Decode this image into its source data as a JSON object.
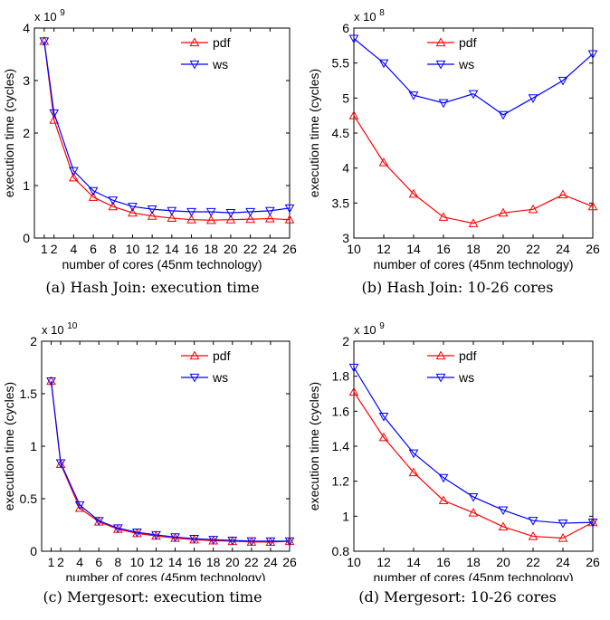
{
  "chart_data": [
    {
      "type": "line",
      "caption": "(a) Hash Join: execution time",
      "xlabel": "number of cores (45nm technology)",
      "ylabel": "execution time (cycles)",
      "exponent": "x 10",
      "exponent_power": "9",
      "x": [
        1,
        2,
        4,
        6,
        8,
        10,
        12,
        14,
        16,
        18,
        20,
        22,
        24,
        26
      ],
      "xticks": [
        1,
        2,
        4,
        6,
        8,
        10,
        12,
        14,
        16,
        18,
        20,
        22,
        24,
        26
      ],
      "xtick_labels": [
        "1",
        "2",
        "4",
        "6",
        "8",
        "10",
        "12",
        "14",
        "16",
        "18",
        "20",
        "22",
        "24",
        "26"
      ],
      "xlim": [
        0,
        26
      ],
      "yticks": [
        0,
        1,
        2,
        3,
        4
      ],
      "ytick_labels": [
        "0",
        "1",
        "2",
        "3",
        "4"
      ],
      "ylim": [
        0,
        4
      ],
      "legend_position": "top-right",
      "series": [
        {
          "name": "pdf",
          "color": "#ff0000",
          "marker": "triangle-up",
          "values": [
            3.75,
            2.25,
            1.15,
            0.78,
            0.6,
            0.48,
            0.42,
            0.38,
            0.35,
            0.34,
            0.35,
            0.36,
            0.37,
            0.35
          ]
        },
        {
          "name": "ws",
          "color": "#0000ff",
          "marker": "triangle-down",
          "values": [
            3.75,
            2.38,
            1.28,
            0.9,
            0.72,
            0.6,
            0.55,
            0.52,
            0.5,
            0.5,
            0.48,
            0.5,
            0.52,
            0.57
          ]
        }
      ]
    },
    {
      "type": "line",
      "caption": "(b) Hash Join: 10-26 cores",
      "xlabel": "number of cores (45nm technology)",
      "ylabel": "execution time (cycles)",
      "exponent": "x 10",
      "exponent_power": "8",
      "x": [
        10,
        12,
        14,
        16,
        18,
        20,
        22,
        24,
        26
      ],
      "xticks": [
        10,
        12,
        14,
        16,
        18,
        20,
        22,
        24,
        26
      ],
      "xtick_labels": [
        "10",
        "12",
        "14",
        "16",
        "18",
        "20",
        "22",
        "24",
        "26"
      ],
      "xlim": [
        10,
        26
      ],
      "yticks": [
        3,
        3.5,
        4,
        4.5,
        5,
        5.5,
        6
      ],
      "ytick_labels": [
        "3",
        "3.5",
        "4",
        "4.5",
        "5",
        "5.5",
        "6"
      ],
      "ylim": [
        3,
        6
      ],
      "legend_position": "top-center",
      "series": [
        {
          "name": "pdf",
          "color": "#ff0000",
          "marker": "triangle-up",
          "values": [
            4.75,
            4.08,
            3.63,
            3.3,
            3.21,
            3.36,
            3.41,
            3.62,
            3.45
          ]
        },
        {
          "name": "ws",
          "color": "#0000ff",
          "marker": "triangle-down",
          "values": [
            5.85,
            5.5,
            5.04,
            4.93,
            5.06,
            4.76,
            5.0,
            5.25,
            5.63
          ]
        }
      ]
    },
    {
      "type": "line",
      "caption": "(c) Mergesort: execution time",
      "xlabel": "number of cores (45nm technology)",
      "ylabel": "execution time (cycles)",
      "exponent": "x 10",
      "exponent_power": "10",
      "x": [
        1,
        2,
        4,
        6,
        8,
        10,
        12,
        14,
        16,
        18,
        20,
        22,
        24,
        26
      ],
      "xticks": [
        1,
        2,
        4,
        6,
        8,
        10,
        12,
        14,
        16,
        18,
        20,
        22,
        24,
        26
      ],
      "xtick_labels": [
        "1",
        "2",
        "4",
        "6",
        "8",
        "10",
        "12",
        "14",
        "16",
        "18",
        "20",
        "22",
        "24",
        "26"
      ],
      "xlim": [
        0,
        26
      ],
      "yticks": [
        0,
        0.5,
        1,
        1.5,
        2
      ],
      "ytick_labels": [
        "0",
        "0.5",
        "1",
        "1.5",
        "2"
      ],
      "ylim": [
        0,
        2
      ],
      "legend_position": "top-right",
      "series": [
        {
          "name": "pdf",
          "color": "#ff0000",
          "marker": "triangle-up",
          "values": [
            1.62,
            0.83,
            0.41,
            0.28,
            0.21,
            0.17,
            0.145,
            0.125,
            0.11,
            0.1,
            0.095,
            0.088,
            0.087,
            0.095
          ]
        },
        {
          "name": "ws",
          "color": "#0000ff",
          "marker": "triangle-down",
          "values": [
            1.62,
            0.84,
            0.44,
            0.29,
            0.22,
            0.18,
            0.155,
            0.135,
            0.12,
            0.11,
            0.103,
            0.097,
            0.096,
            0.096
          ]
        }
      ]
    },
    {
      "type": "line",
      "caption": "(d) Mergesort: 10-26 cores",
      "xlabel": "number of cores (45nm technology)",
      "ylabel": "execution time (cycles)",
      "exponent": "x 10",
      "exponent_power": "9",
      "x": [
        10,
        12,
        14,
        16,
        18,
        20,
        22,
        24,
        26
      ],
      "xticks": [
        10,
        12,
        14,
        16,
        18,
        20,
        22,
        24,
        26
      ],
      "xtick_labels": [
        "10",
        "12",
        "14",
        "16",
        "18",
        "20",
        "22",
        "24",
        "26"
      ],
      "xlim": [
        10,
        26
      ],
      "yticks": [
        0.8,
        1,
        1.2,
        1.4,
        1.6,
        1.8,
        2
      ],
      "ytick_labels": [
        "0.8",
        "1",
        "1.2",
        "1.4",
        "1.6",
        "1.8",
        "2"
      ],
      "ylim": [
        0.8,
        2
      ],
      "legend_position": "top-center",
      "series": [
        {
          "name": "pdf",
          "color": "#ff0000",
          "marker": "triangle-up",
          "values": [
            1.71,
            1.45,
            1.25,
            1.09,
            1.02,
            0.94,
            0.885,
            0.875,
            0.965
          ]
        },
        {
          "name": "ws",
          "color": "#0000ff",
          "marker": "triangle-down",
          "values": [
            1.85,
            1.57,
            1.36,
            1.22,
            1.11,
            1.035,
            0.975,
            0.96,
            0.965
          ]
        }
      ]
    }
  ]
}
